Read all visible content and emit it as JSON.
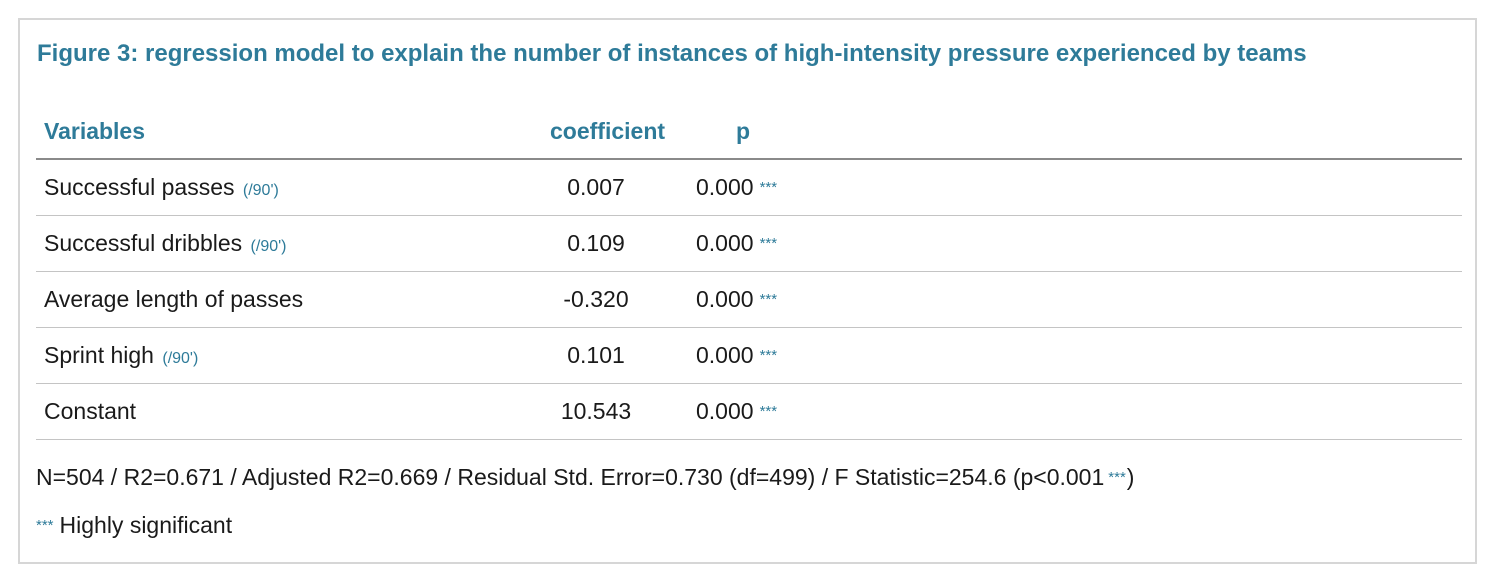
{
  "title": "Figure 3: regression model to explain the number of instances of high-intensity pressure experienced by teams",
  "table": {
    "headers": {
      "variables": "Variables",
      "coefficient": "coefficient",
      "p": "p"
    },
    "rows": [
      {
        "variable": "Successful passes",
        "unit": "(/90')",
        "coefficient": "0.007",
        "p": "0.000",
        "stars": "***"
      },
      {
        "variable": "Successful dribbles",
        "unit": "(/90')",
        "coefficient": "0.109",
        "p": "0.000",
        "stars": "***"
      },
      {
        "variable": "Average length of passes",
        "unit": "",
        "coefficient": "-0.320",
        "p": "0.000",
        "stars": "***"
      },
      {
        "variable": "Sprint high",
        "unit": "(/90')",
        "coefficient": "0.101",
        "p": "0.000",
        "stars": "***"
      },
      {
        "variable": "Constant",
        "unit": "",
        "coefficient": "10.543",
        "p": "0.000",
        "stars": "***"
      }
    ]
  },
  "footer": {
    "stats": "N=504 / R2=0.671 / Adjusted R2=0.669 / Residual Std. Error=0.730 (df=499) / F Statistic=254.6 (p<0.001",
    "stars": "***",
    "close": ")"
  },
  "legend": {
    "stars": "***",
    "label": "Highly significant"
  },
  "colors": {
    "accent": "#2e7b99",
    "border": "#d6d6d6",
    "header_rule": "#8a8a8a",
    "row_rule": "#c4c4c4"
  }
}
